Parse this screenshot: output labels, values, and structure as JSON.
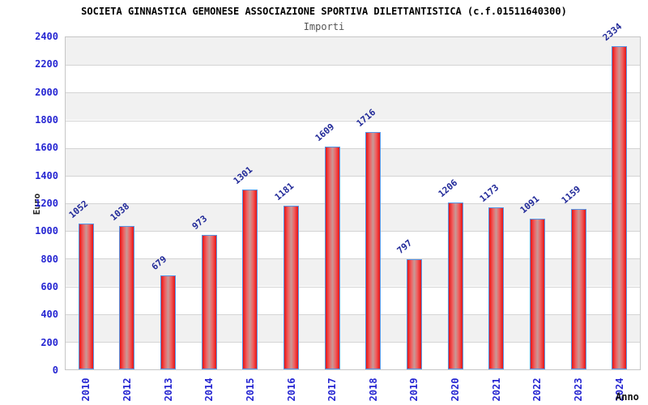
{
  "header": {
    "title": "SOCIETA GINNASTICA GEMONESE ASSOCIAZIONE SPORTIVA DILETTANTISTICA (c.f.01511640300)",
    "subtitle": "Importi"
  },
  "chart_data": {
    "type": "bar",
    "title": "SOCIETA GINNASTICA GEMONESE ASSOCIAZIONE SPORTIVA DILETTANTISTICA (c.f.01511640300)",
    "subtitle": "Importi",
    "xlabel": "Anno",
    "ylabel": "Euro",
    "categories": [
      "2010",
      "2012",
      "2013",
      "2014",
      "2015",
      "2016",
      "2017",
      "2018",
      "2019",
      "2020",
      "2021",
      "2022",
      "2023",
      "2024"
    ],
    "values": [
      1052,
      1038,
      679,
      973,
      1301,
      1181,
      1609,
      1716,
      797,
      1206,
      1173,
      1091,
      1159,
      2334
    ],
    "ylim": [
      0,
      2400
    ],
    "ytick_step": 200,
    "yticks": [
      0,
      200,
      400,
      600,
      800,
      1000,
      1200,
      1400,
      1600,
      1800,
      2000,
      2200,
      2400
    ],
    "grid": "horizontal-bands",
    "legend": "none",
    "colors": {
      "bar_edge_red": "#e81414",
      "bar_mid_red": "#f06060",
      "bar_center_sheen": "#c79a97",
      "bar_border_blue": "#5596e6",
      "tick_label_blue": "#2626d2",
      "value_label_navy": "#222a99",
      "band_gray": "#f1f1f1",
      "band_white": "#ffffff",
      "grid_line": "#d4d4d4",
      "title_color": "#000000",
      "subtitle_color": "#545454",
      "axis_title_color": "#111111"
    }
  }
}
